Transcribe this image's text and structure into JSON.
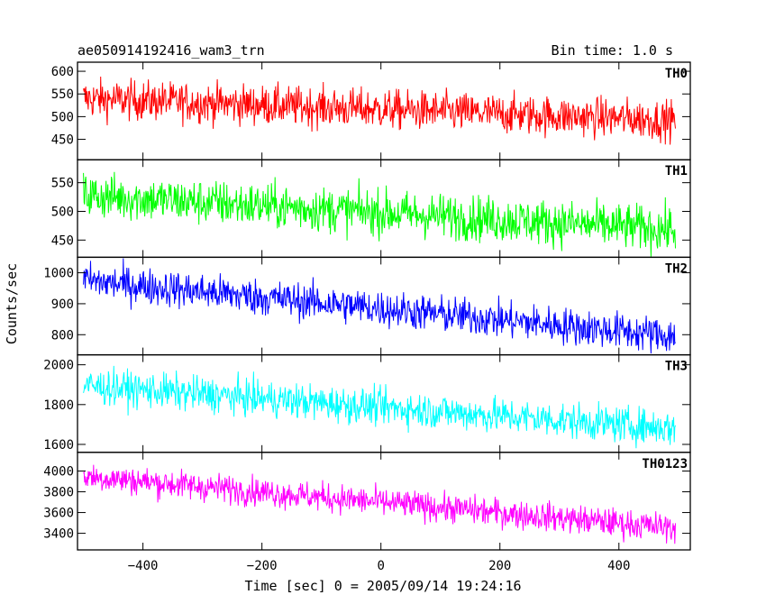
{
  "header": {
    "title": "ae050914192416_wam3_trn",
    "bin_time": "Bin time: 1.0 s"
  },
  "chart_data": {
    "type": "line",
    "xlabel": "Time [sec] 0 = 2005/09/14 19:24:16",
    "ylabel": "Counts/sec",
    "xlim": [
      -510,
      520
    ],
    "x_ticks": [
      -400,
      -200,
      0,
      200,
      400
    ],
    "x_tick_labels": [
      "−400",
      "−200",
      "0",
      "200",
      "400"
    ],
    "x_data_range": [
      -500,
      495
    ],
    "bin_time": 1.0,
    "series": [
      {
        "name": "TH0",
        "color": "#ff0000",
        "ylim": [
          405,
          620
        ],
        "y_ticks": [
          450,
          500,
          550,
          600
        ],
        "start": 540,
        "end": 492,
        "noise": 22
      },
      {
        "name": "TH1",
        "color": "#00ff00",
        "ylim": [
          420,
          590
        ],
        "y_ticks": [
          450,
          500,
          550
        ],
        "start": 528,
        "end": 468,
        "noise": 20
      },
      {
        "name": "TH2",
        "color": "#0000ff",
        "ylim": [
          735,
          1050
        ],
        "y_ticks": [
          800,
          900,
          1000
        ],
        "start": 975,
        "end": 795,
        "noise": 30
      },
      {
        "name": "TH3",
        "color": "#00ffff",
        "ylim": [
          1560,
          2050
        ],
        "y_ticks": [
          1600,
          1800,
          2000
        ],
        "start": 1895,
        "end": 1680,
        "noise": 45
      },
      {
        "name": "TH0123",
        "color": "#ff00ff",
        "ylim": [
          3240,
          4180
        ],
        "y_ticks": [
          3400,
          3600,
          3800,
          4000
        ],
        "start": 3950,
        "end": 3450,
        "noise": 70
      }
    ]
  }
}
